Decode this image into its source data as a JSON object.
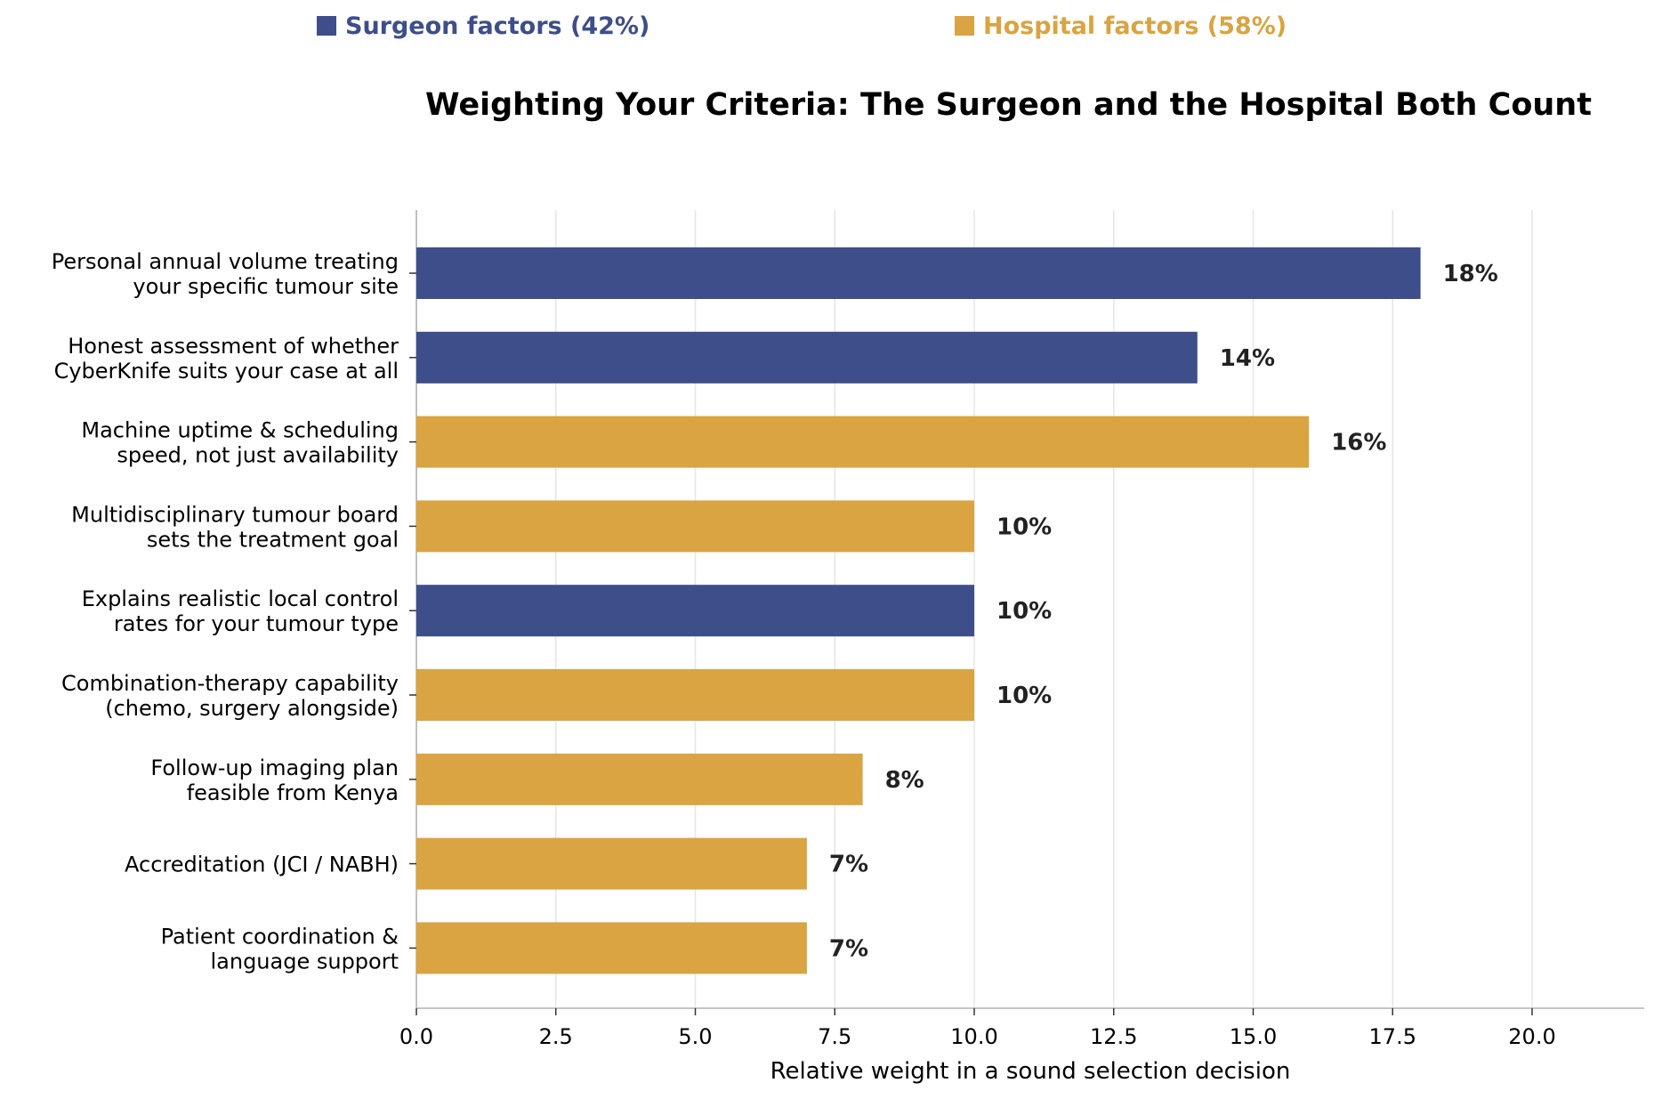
{
  "legend": {
    "surgeon": "Surgeon factors (42%)",
    "hospital": "Hospital factors (58%)"
  },
  "colors": {
    "surgeon": "#3d4e8a",
    "hospital": "#d9a441",
    "grid": "#e6e6e6",
    "axis": "#b0b0b0",
    "text": "#000000",
    "value_label": "#222222"
  },
  "chart_data": {
    "type": "bar",
    "orientation": "horizontal",
    "title": "Weighting Your Criteria: The Surgeon and the Hospital Both Count",
    "xlabel": "Relative weight in a sound selection decision",
    "xlim": [
      0,
      22
    ],
    "xticks": [
      0.0,
      2.5,
      5.0,
      7.5,
      10.0,
      12.5,
      15.0,
      17.5,
      20.0
    ],
    "xtick_labels": [
      "0.0",
      "2.5",
      "5.0",
      "7.5",
      "10.0",
      "12.5",
      "15.0",
      "17.5",
      "20.0"
    ],
    "grid": "x",
    "legend_position": "top",
    "categories": [
      [
        "Personal annual volume treating",
        "your specific tumour site"
      ],
      [
        "Honest assessment of whether",
        "CyberKnife suits your case at all"
      ],
      [
        "Machine uptime & scheduling",
        "speed, not just availability"
      ],
      [
        "Multidisciplinary tumour board",
        "sets the treatment goal"
      ],
      [
        "Explains realistic local control",
        "rates for your tumour type"
      ],
      [
        "Combination-therapy capability",
        "(chemo, surgery alongside)"
      ],
      [
        "Follow-up imaging plan",
        "feasible from Kenya"
      ],
      [
        "Accreditation (JCI / NABH)"
      ],
      [
        "Patient coordination &",
        "language support"
      ]
    ],
    "values": [
      18,
      14,
      16,
      10,
      10,
      10,
      8,
      7,
      7
    ],
    "value_labels": [
      "18%",
      "14%",
      "16%",
      "10%",
      "10%",
      "10%",
      "8%",
      "7%",
      "7%"
    ],
    "groups": [
      "surgeon",
      "surgeon",
      "hospital",
      "hospital",
      "surgeon",
      "hospital",
      "hospital",
      "hospital",
      "hospital"
    ]
  }
}
